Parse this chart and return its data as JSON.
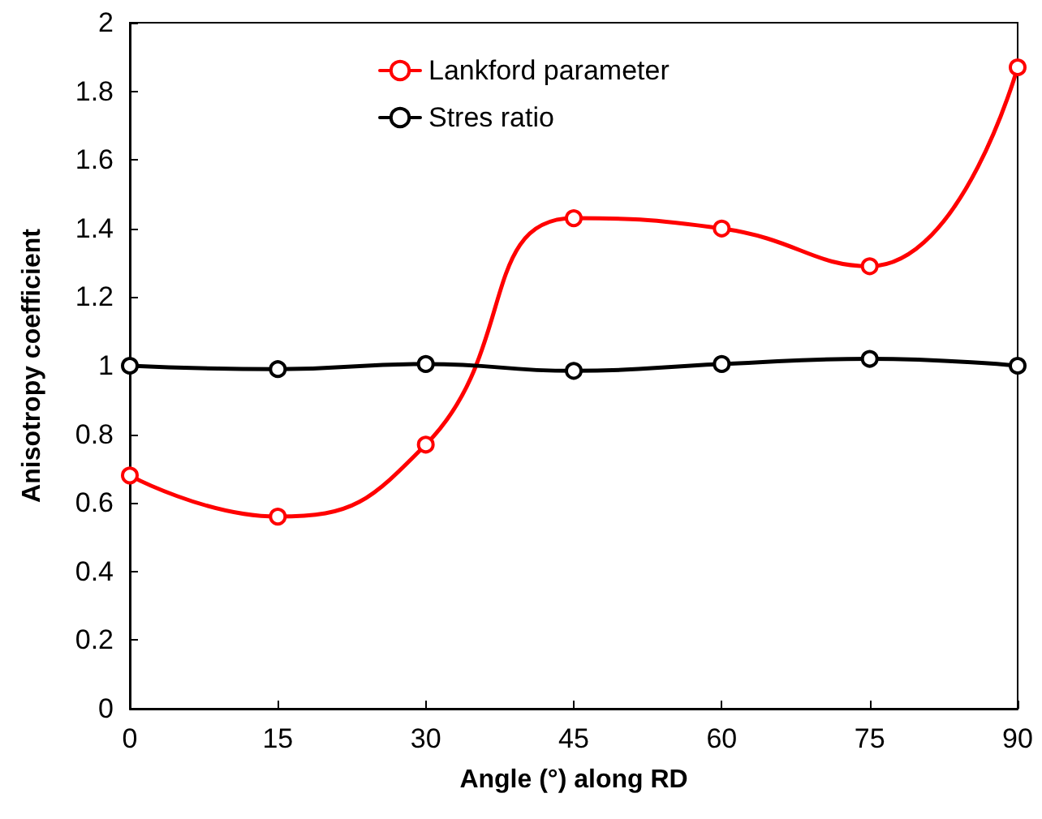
{
  "chart_data": {
    "type": "line",
    "xlabel": "Angle (°) along RD",
    "ylabel": "Anisotropy coefficient",
    "x": [
      0,
      15,
      30,
      45,
      60,
      75,
      90
    ],
    "series": [
      {
        "name": "Lankford parameter",
        "color": "#ff0000",
        "values": [
          0.68,
          0.56,
          0.77,
          1.43,
          1.4,
          1.29,
          1.87
        ]
      },
      {
        "name": "Stres ratio",
        "color": "#000000",
        "values": [
          1.0,
          0.99,
          1.005,
          0.985,
          1.005,
          1.02,
          1.0
        ]
      }
    ],
    "xlim": [
      0,
      90
    ],
    "xticks": [
      0,
      15,
      30,
      45,
      60,
      75,
      90
    ],
    "ylim": [
      0,
      2
    ],
    "yticks": [
      0,
      0.2,
      0.4,
      0.6,
      0.8,
      1,
      1.2,
      1.4,
      1.6,
      1.8,
      2
    ],
    "grid": false,
    "legend": "top",
    "marker": "circle",
    "line_style": "solid"
  }
}
